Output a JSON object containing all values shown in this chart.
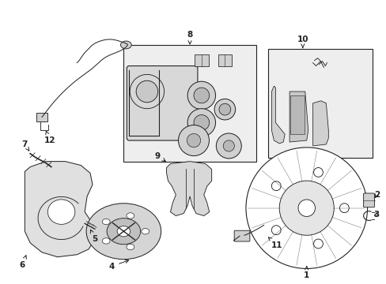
{
  "background_color": "#ffffff",
  "fig_width": 4.89,
  "fig_height": 3.6,
  "dpi": 100,
  "line_color": "#222222",
  "fill_color": "#e8e8e8",
  "box_fill": "#eeeeee"
}
